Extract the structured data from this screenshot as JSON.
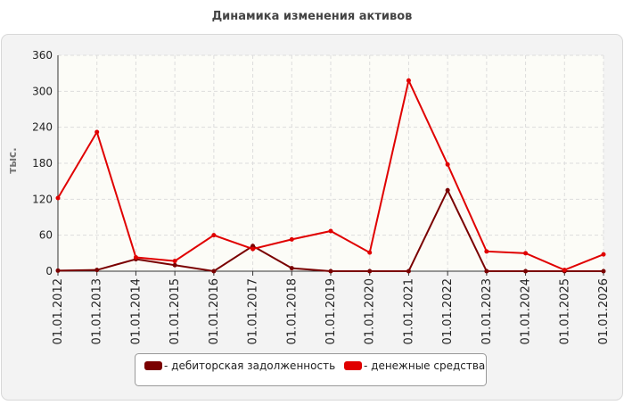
{
  "chart_data": {
    "type": "line",
    "title": "Динамика изменения активов",
    "y_label": "тыс.",
    "categories": [
      "01.01.2012",
      "01.01.2013",
      "01.01.2014",
      "01.01.2015",
      "01.01.2016",
      "01.01.2017",
      "01.01.2018",
      "01.01.2019",
      "01.01.2020",
      "01.01.2021",
      "01.01.2022",
      "01.01.2023",
      "01.01.2024",
      "01.01.2025",
      "01.01.2026"
    ],
    "series": [
      {
        "name": "дебиторская задолженность",
        "color": "#7a0000",
        "values": [
          1,
          2,
          20,
          10,
          0,
          42,
          5,
          0,
          0,
          0,
          135,
          0,
          0,
          0,
          0
        ]
      },
      {
        "name": "денежные средства",
        "color": "#e00000",
        "values": [
          122,
          232,
          23,
          17,
          60,
          37,
          53,
          67,
          31,
          318,
          178,
          33,
          30,
          2,
          28
        ]
      }
    ],
    "ylim": [
      0,
      360
    ],
    "yticks": [
      0,
      60,
      120,
      180,
      240,
      300,
      360
    ],
    "grid": true
  }
}
